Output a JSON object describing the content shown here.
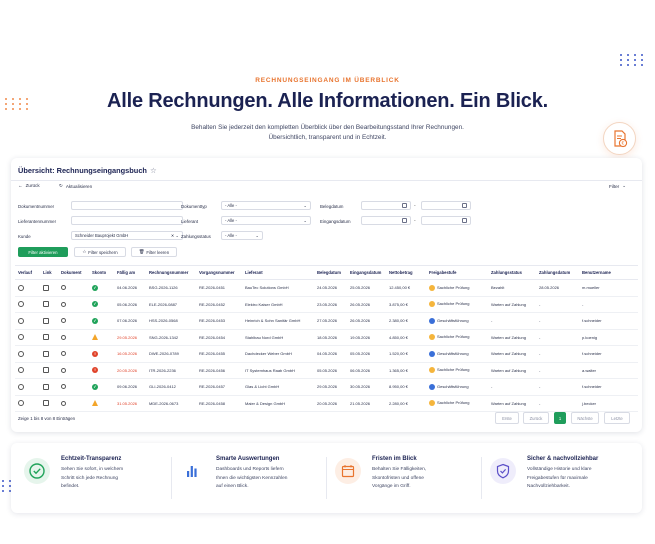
{
  "hero": {
    "eyebrow": "RECHNUNGSEINGANG IM ÜBERBLICK",
    "headline": "Alle Rechnungen. Alle Informationen. Ein Blick.",
    "sub_line1": "Behalten Sie jederzeit den kompletten Überblick über den Bearbeitungsstand Ihrer Rechnungen.",
    "sub_line2": "Übersichtlich, transparent und in Echtzeit.",
    "badge_icon": "invoice-euro-icon"
  },
  "panel": {
    "title": "Übersicht: Rechnungseingangsbuch",
    "star": "☆",
    "back_label": "Zurück",
    "refresh_label": "Aktualisieren",
    "filter_label": "Filter"
  },
  "filters": {
    "dokumentnummer": "Dokumentnummer",
    "lieferantennummer": "Lieferantennummer",
    "kunde": "Kunde",
    "kunde_value": "Schneider Bauprojekt GmbH",
    "dokumenttyp": "Dokumenttyp",
    "dokumenttyp_value": "- Alle -",
    "lieferant": "Lieferant",
    "lieferant_value": "- Alle -",
    "zahlungsstatus": "Zahlungsstatus",
    "zahlungsstatus_value": "- Alle -",
    "belegdatum": "Belegdatum",
    "eingangsdatum": "Eingangsdatum",
    "date_sep": "-",
    "apply": "Filter aktivieren",
    "save": "Filter speichern",
    "clear": "Filter leeren"
  },
  "table": {
    "headers": [
      "Verlauf",
      "Link",
      "Dokument",
      "Skonto",
      "Fällig am",
      "Rechnungsnummer",
      "Vorgangsnummer",
      "Lieferant",
      "Belegdatum",
      "Eingangsdatum",
      "Nettobetrag",
      "Freigabestufe",
      "Zahlungsstatus",
      "Zahlungsdatum",
      "Benutzername"
    ],
    "rows": [
      {
        "skonto": "ok",
        "faellig": "04.06.2026",
        "rn": "BSG-2026-1126",
        "vn": "RE-2026-0451",
        "lieferant": "BauTec Solutions GmbH",
        "beleg": "24.05.2026",
        "eingang": "25.05.2026",
        "netto": "12.450,00 €",
        "stufe": "Sachliche Prüfung",
        "stufe_color": "orange",
        "status": "Bezahlt",
        "zdatum": "28.05.2026",
        "user": "m.mueller"
      },
      {
        "skonto": "ok",
        "faellig": "05.06.2026",
        "rn": "ELE-2026-0887",
        "vn": "RE-2026-0452",
        "lieferant": "Elektro Kaiser GmbH",
        "beleg": "23.05.2026",
        "eingang": "26.05.2026",
        "netto": "3.875,00 €",
        "stufe": "Sachliche Prüfung",
        "stufe_color": "orange",
        "status": "Warten auf Zahlung",
        "zdatum": "-",
        "user": "-"
      },
      {
        "skonto": "ok",
        "faellig": "07.06.2026",
        "rn": "HSS-2026-0568",
        "vn": "RE-2026-0453",
        "lieferant": "Heinrich & Sohn Sanitär GmbH",
        "beleg": "27.05.2026",
        "eingang": "26.05.2026",
        "netto": "2.380,00 €",
        "stufe": "Geschäftsführung",
        "stufe_color": "blue",
        "status": "-",
        "zdatum": "-",
        "user": "f.schneider"
      },
      {
        "skonto": "warn",
        "faellig": "29.05.2026",
        "faellig_red": true,
        "rn": "SNG-2026-1342",
        "vn": "RE-2026-0454",
        "lieferant": "Stahlbau Nord GmbH",
        "beleg": "18.05.2026",
        "eingang": "19.05.2026",
        "netto": "4.850,00 €",
        "stufe": "Sachliche Prüfung",
        "stufe_color": "orange",
        "status": "Warten auf Zahlung",
        "zdatum": "-",
        "user": "p.koenig"
      },
      {
        "skonto": "err",
        "faellig": "16.05.2026",
        "faellig_red": true,
        "rn": "DWE-2026-0789",
        "vn": "RE-2026-0455",
        "lieferant": "Dachdecker Weber GmbH",
        "beleg": "04.05.2026",
        "eingang": "05.05.2026",
        "netto": "1.520,00 €",
        "stufe": "Geschäftsführung",
        "stufe_color": "blue",
        "status": "Warten auf Zahlung",
        "zdatum": "-",
        "user": "f.schneider"
      },
      {
        "skonto": "err",
        "faellig": "20.05.2026",
        "faellig_red": true,
        "rn": "ITR-2026-2236",
        "vn": "RE-2026-0456",
        "lieferant": "IT Systemhaus Raab GmbH",
        "beleg": "05.05.2026",
        "eingang": "06.05.2026",
        "netto": "1.365,00 €",
        "stufe": "Sachliche Prüfung",
        "stufe_color": "orange",
        "status": "Warten auf Zahlung",
        "zdatum": "-",
        "user": "a.walter"
      },
      {
        "skonto": "ok",
        "faellig": "09.06.2026",
        "rn": "GLI-2026-0412",
        "vn": "RE-2026-0457",
        "lieferant": "Glas & Licht GmbH",
        "beleg": "29.05.2026",
        "eingang": "30.05.2026",
        "netto": "8.950,00 €",
        "stufe": "Geschäftsführung",
        "stufe_color": "blue",
        "status": "-",
        "zdatum": "-",
        "user": "f.schneider"
      },
      {
        "skonto": "warn",
        "faellig": "31.05.2026",
        "faellig_red": true,
        "rn": "MDE-2026-0673",
        "vn": "RE-2026-0458",
        "lieferant": "Maier & Design GmbH",
        "beleg": "20.05.2026",
        "eingang": "21.05.2026",
        "netto": "2.280,00 €",
        "stufe": "Sachliche Prüfung",
        "stufe_color": "orange",
        "status": "Warten auf Zahlung",
        "zdatum": "-",
        "user": "j.becker"
      }
    ],
    "footer": "Zeige 1 bis 8 von 8 Einträgen"
  },
  "pagination": {
    "first": "Erste",
    "prev": "Zurück",
    "current": "1",
    "next": "Nächste",
    "last": "Letzte"
  },
  "features": [
    {
      "icon": "check-circle-icon",
      "color": "#20a35a",
      "bg": "#e6f5ec",
      "title": "Echtzeit-Transparenz",
      "desc": [
        "Sehen Sie sofort, in welchem",
        "Schritt sich jede Rechnung",
        "befindet."
      ]
    },
    {
      "icon": "bar-chart-icon",
      "color": "#3a6fd8",
      "bg": "#ffffff",
      "title": "Smarte Auswertungen",
      "desc": [
        "Dashboards und Reports liefern",
        "Ihnen die wichtigsten Kennzahlen",
        "auf einen Blick."
      ]
    },
    {
      "icon": "calendar-icon",
      "color": "#e8742f",
      "bg": "#fdeee4",
      "title": "Fristen im Blick",
      "desc": [
        "Behalten Sie Fälligkeiten,",
        "Skontofristen und offene",
        "Vorgänge im Griff."
      ]
    },
    {
      "icon": "shield-check-icon",
      "color": "#5b4fc8",
      "bg": "#efedfb",
      "title": "Sicher & nachvollziehbar",
      "desc": [
        "Vollständige Historie und klare",
        "Freigabestufen für maximale",
        "Nachvollziehbarkeit."
      ]
    }
  ],
  "colors": {
    "accent_orange": "#e8742f",
    "navy": "#1b2252",
    "green": "#1f9d5b",
    "red": "#e0432a"
  }
}
